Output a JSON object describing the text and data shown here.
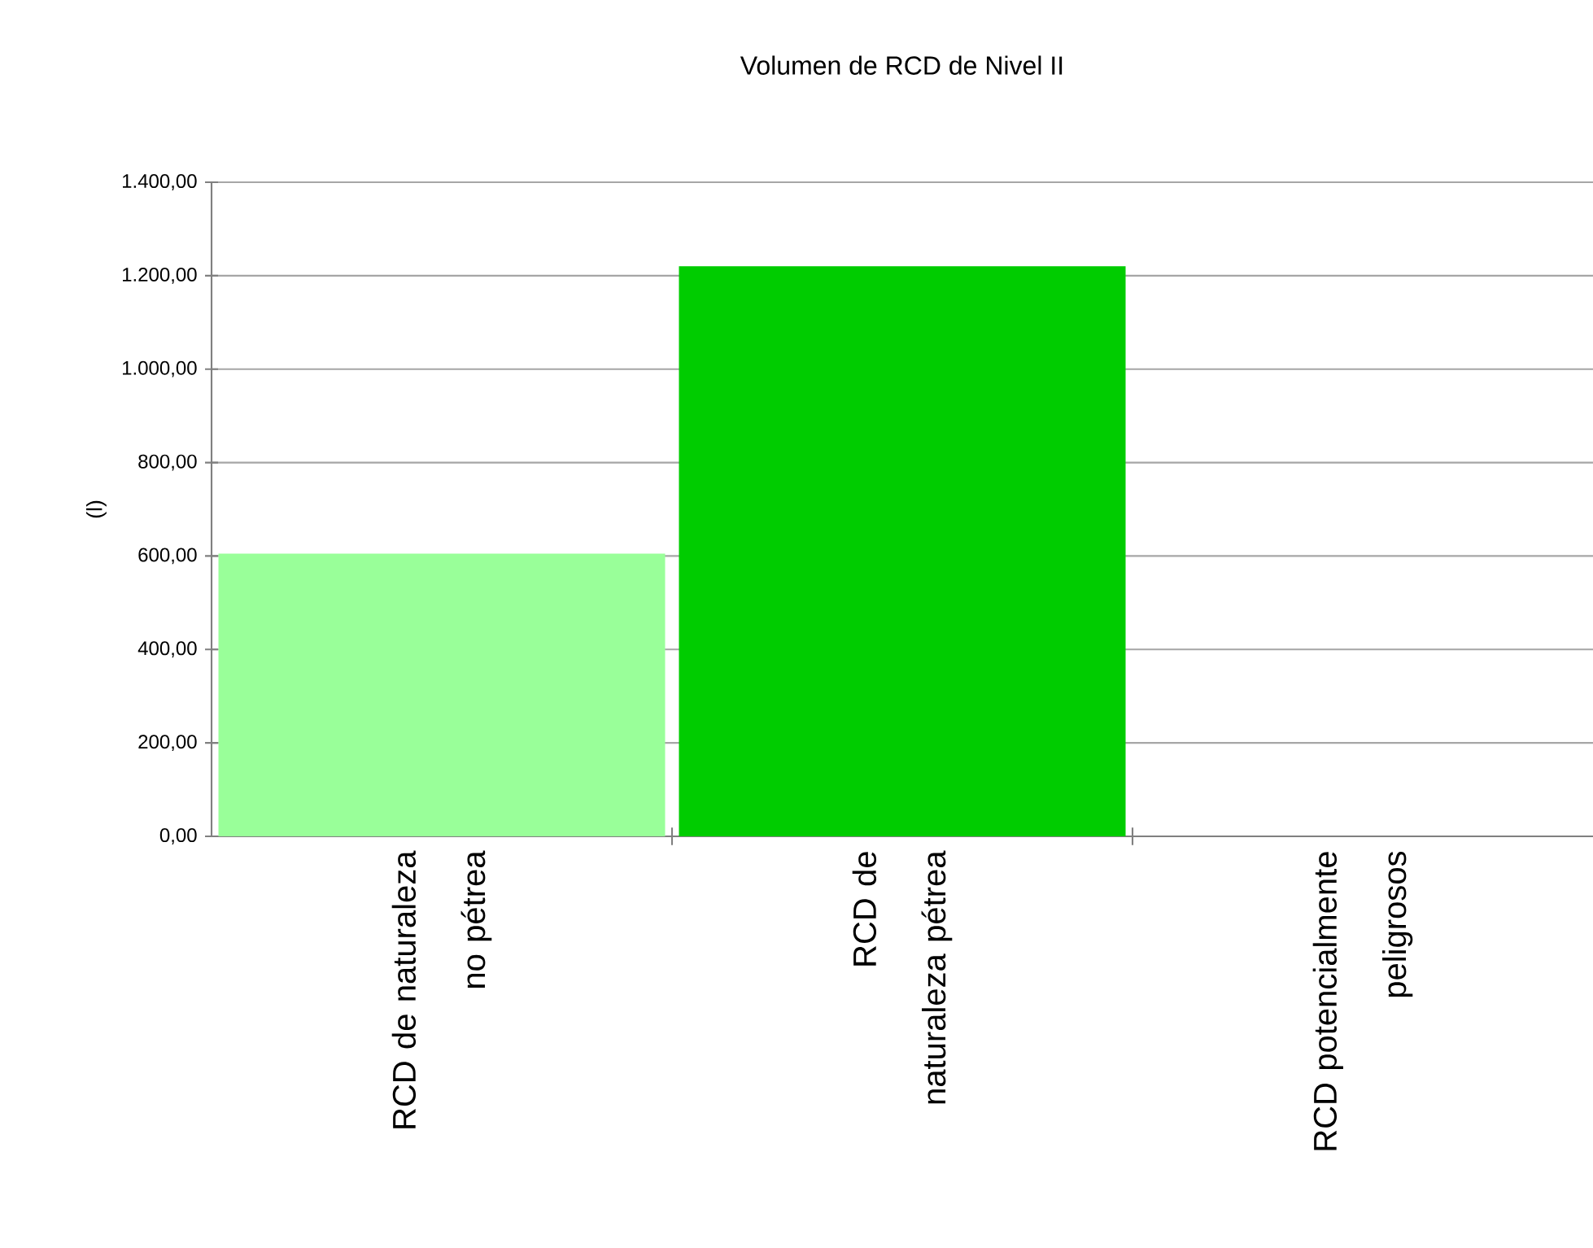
{
  "chart_data": {
    "type": "bar",
    "title": "Volumen de RCD de Nivel II",
    "ylabel": "(l)",
    "categories": [
      "RCD de naturaleza no pétrea",
      "RCD de naturaleza pétrea",
      "RCD potencialmente peligrosos"
    ],
    "values": [
      605,
      1220,
      0
    ],
    "colors": [
      "#99ff99",
      "#00cc00",
      "#009900"
    ],
    "ylim": [
      0,
      1400
    ],
    "yticks": [
      {
        "value": 0,
        "label": "0,00"
      },
      {
        "value": 200,
        "label": "200,00"
      },
      {
        "value": 400,
        "label": "400,00"
      },
      {
        "value": 600,
        "label": "600,00"
      },
      {
        "value": 800,
        "label": "800,00"
      },
      {
        "value": 1000,
        "label": "1.000,00"
      },
      {
        "value": 1200,
        "label": "1.200,00"
      },
      {
        "value": 1400,
        "label": "1.400,00"
      }
    ],
    "grid": "y"
  }
}
